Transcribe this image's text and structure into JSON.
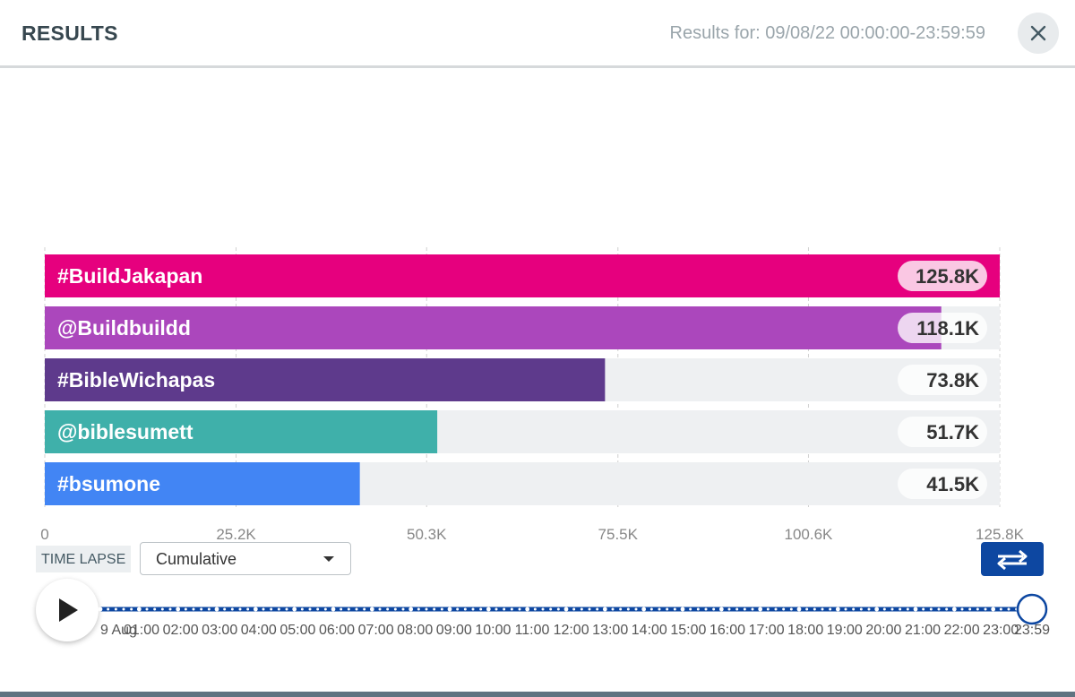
{
  "header": {
    "title": "RESULTS",
    "results_for": "Results for: 09/08/22 00:00:00-23:59:59",
    "close_icon": "close-icon"
  },
  "chart_data": {
    "type": "bar",
    "orientation": "horizontal",
    "categories": [
      "#BuildJakapan",
      "@Buildbuildd",
      "#BibleWichapas",
      "@biblesumett",
      "#bsumone"
    ],
    "values": [
      125.8,
      118.1,
      73.8,
      51.7,
      41.5
    ],
    "value_labels": [
      "125.8K",
      "118.1K",
      "73.8K",
      "51.7K",
      "41.5K"
    ],
    "colors": [
      "#e6007e",
      "#ab47bc",
      "#5e3a8c",
      "#3fb0aa",
      "#4285f4"
    ],
    "unit": "K",
    "xlim": [
      0,
      125.8
    ],
    "xticks": [
      0,
      25.2,
      50.3,
      75.5,
      100.6,
      125.8
    ],
    "xtick_labels": [
      "0",
      "25.2K",
      "50.3K",
      "75.5K",
      "100.6K",
      "125.8K"
    ],
    "grid": true
  },
  "controls": {
    "time_lapse_label": "TIME LAPSE",
    "mode_value": "Cumulative",
    "loop_icon": "repeat-icon",
    "play_icon": "play-icon"
  },
  "timeline": {
    "start_label": "9 Aug",
    "end_label": "23:59",
    "progress": 1.0,
    "hour_labels": [
      "01:00",
      "02:00",
      "03:00",
      "04:00",
      "05:00",
      "06:00",
      "07:00",
      "08:00",
      "09:00",
      "10:00",
      "11:00",
      "12:00",
      "13:00",
      "14:00",
      "15:00",
      "16:00",
      "17:00",
      "18:00",
      "19:00",
      "20:00",
      "21:00",
      "22:00",
      "23:00"
    ]
  }
}
